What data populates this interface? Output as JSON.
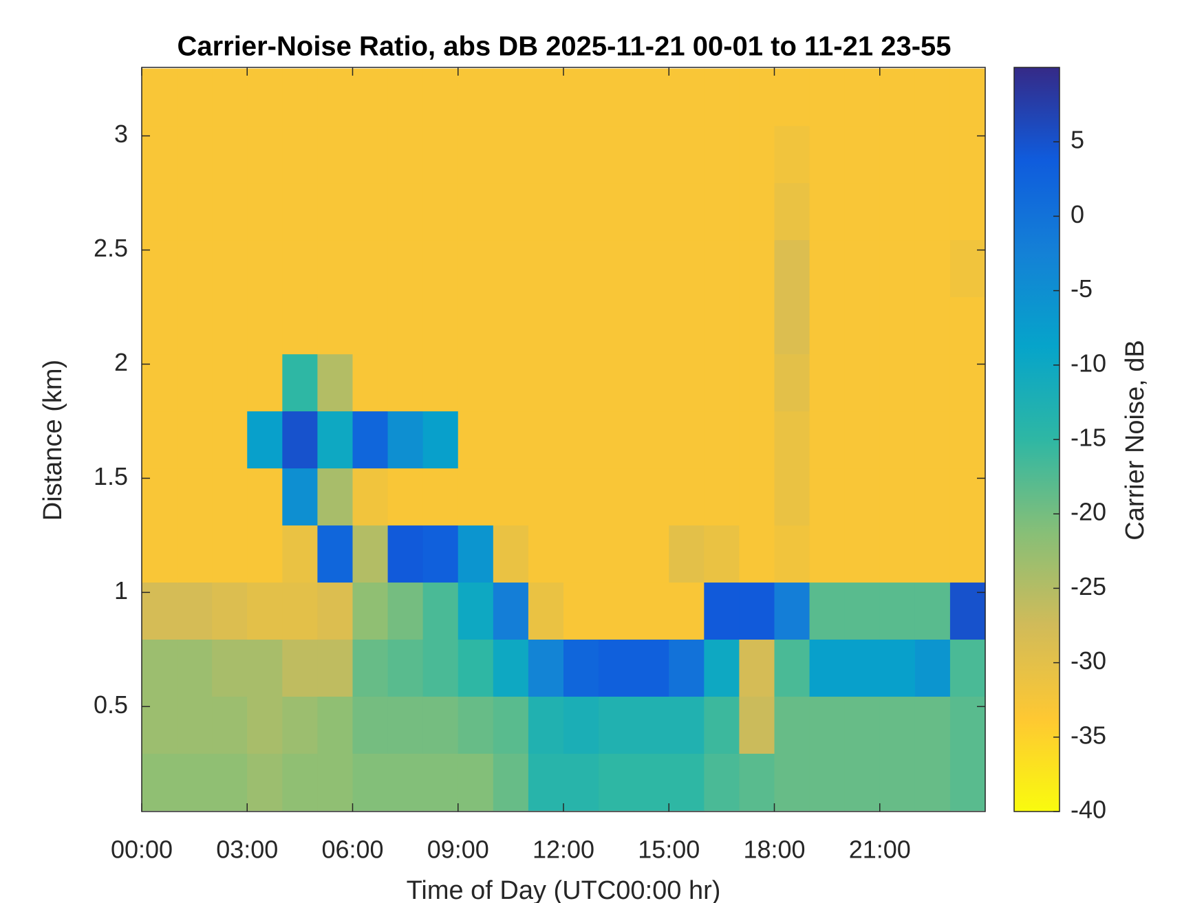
{
  "chart_data": {
    "type": "heatmap",
    "title": "Carrier-Noise Ratio, abs DB 2025-11-21 00-01 to 11-21 23-55",
    "xlabel": "Time of Day (UTC00:00 hr)",
    "ylabel": "Distance (km)",
    "colorbar_label": "Carrier Noise, dB",
    "x": [
      0.5,
      1.5,
      2.5,
      3.5,
      4.5,
      5.5,
      6.5,
      7.5,
      8.5,
      9.5,
      10.5,
      11.5,
      12.5,
      13.5,
      14.5,
      15.5,
      16.5,
      17.5,
      18.5,
      19.5,
      20.5,
      21.5,
      22.5,
      23.5
    ],
    "y": [
      0.17,
      0.42,
      0.67,
      0.92,
      1.17,
      1.42,
      1.67,
      1.92,
      2.17,
      2.42,
      2.67,
      2.92,
      3.17
    ],
    "z": [
      [
        -22,
        -22,
        -22,
        -23,
        -22,
        -22,
        -21,
        -21,
        -21,
        -21,
        -19,
        -14,
        -14,
        -15,
        -15,
        -15,
        -17,
        -18,
        -19,
        -19,
        -19,
        -19,
        -19,
        -18
      ],
      [
        -23,
        -23,
        -23,
        -24,
        -23,
        -22,
        -20,
        -20,
        -20,
        -19,
        -18,
        -13,
        -12,
        -13,
        -13,
        -13,
        -16,
        -27,
        -19,
        -19,
        -19,
        -19,
        -19,
        -18
      ],
      [
        -23,
        -23,
        -24,
        -24,
        -26,
        -26,
        -19,
        -18,
        -17,
        -15,
        -10,
        -3,
        2,
        3,
        3,
        0,
        -10,
        -28,
        -17,
        -8,
        -8,
        -8,
        -6,
        -17
      ],
      [
        -28,
        -28,
        -29,
        -30,
        -30,
        -29,
        -22,
        -20,
        -17,
        -10,
        -2,
        -31,
        -33,
        -33,
        -33,
        -33,
        4,
        4,
        -2,
        -18,
        -18,
        -18,
        -18,
        5
      ],
      [
        -33,
        -33,
        -33,
        -33,
        -31,
        2,
        -25,
        4,
        3,
        -6,
        -31,
        -33,
        -33,
        -33,
        -33,
        -30,
        -31,
        -33,
        -32,
        -33,
        -33,
        -33,
        -33,
        -33
      ],
      [
        -33,
        -33,
        -33,
        -33,
        -5,
        -24,
        -32,
        -33,
        -33,
        -33,
        -33,
        -33,
        -33,
        -33,
        -33,
        -33,
        -33,
        -33,
        -31,
        -33,
        -33,
        -33,
        -33,
        -33
      ],
      [
        -33,
        -33,
        -33,
        -8,
        5,
        -10,
        2,
        -5,
        -8,
        -33,
        -33,
        -33,
        -33,
        -33,
        -33,
        -33,
        -33,
        -33,
        -31,
        -33,
        -33,
        -33,
        -33,
        -33
      ],
      [
        -33,
        -33,
        -33,
        -33,
        -15,
        -25,
        -33,
        -33,
        -33,
        -33,
        -33,
        -33,
        -33,
        -33,
        -33,
        -33,
        -33,
        -33,
        -30,
        -33,
        -33,
        -33,
        -33,
        -33
      ],
      [
        -33,
        -33,
        -33,
        -33,
        -33,
        -33,
        -33,
        -33,
        -33,
        -33,
        -33,
        -33,
        -33,
        -33,
        -33,
        -33,
        -33,
        -33,
        -29,
        -33,
        -33,
        -33,
        -33,
        -33
      ],
      [
        -33,
        -33,
        -33,
        -33,
        -33,
        -33,
        -33,
        -33,
        -33,
        -33,
        -33,
        -33,
        -33,
        -33,
        -33,
        -33,
        -33,
        -33,
        -29,
        -33,
        -33,
        -33,
        -33,
        -32
      ],
      [
        -33,
        -33,
        -33,
        -33,
        -33,
        -33,
        -33,
        -33,
        -33,
        -33,
        -33,
        -33,
        -33,
        -33,
        -33,
        -33,
        -33,
        -33,
        -31,
        -33,
        -33,
        -33,
        -33,
        -33
      ],
      [
        -33,
        -33,
        -33,
        -33,
        -33,
        -33,
        -33,
        -33,
        -33,
        -33,
        -33,
        -33,
        -33,
        -33,
        -33,
        -33,
        -33,
        -33,
        -32,
        -33,
        -33,
        -33,
        -33,
        -33
      ],
      [
        -33,
        -33,
        -33,
        -33,
        -33,
        -33,
        -33,
        -33,
        -33,
        -33,
        -33,
        -33,
        -33,
        -33,
        -33,
        -33,
        -33,
        -33,
        -33,
        -33,
        -33,
        -33,
        -33,
        -33
      ]
    ],
    "xlim": [
      0,
      24
    ],
    "xticks": [
      {
        "value": 0,
        "label": "00:00"
      },
      {
        "value": 3,
        "label": "03:00"
      },
      {
        "value": 6,
        "label": "06:00"
      },
      {
        "value": 9,
        "label": "09:00"
      },
      {
        "value": 12,
        "label": "12:00"
      },
      {
        "value": 15,
        "label": "15:00"
      },
      {
        "value": 18,
        "label": "18:00"
      },
      {
        "value": 21,
        "label": "21:00"
      }
    ],
    "ylim": [
      0.04,
      3.3
    ],
    "yticks": [
      0.5,
      1,
      1.5,
      2,
      2.5,
      3
    ],
    "clim": [
      -40,
      10
    ],
    "cticks": [
      -40,
      -35,
      -30,
      -25,
      -20,
      -15,
      -10,
      -5,
      0,
      5
    ],
    "colormap": [
      "#352a87",
      "#0f5cdd",
      "#1481d6",
      "#06a4ca",
      "#2eb7a4",
      "#87bf77",
      "#d1bb59",
      "#fec832",
      "#f9fb0e"
    ]
  }
}
